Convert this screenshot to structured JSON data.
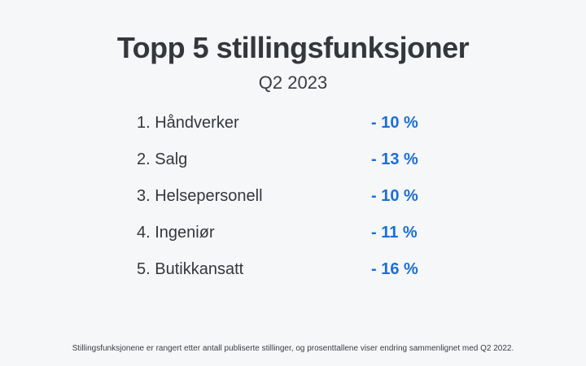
{
  "header": {
    "title": "Topp 5 stillingsfunksjoner",
    "subtitle": "Q2 2023"
  },
  "ranking": [
    {
      "label": "1. Håndverker",
      "change": "- 10 %"
    },
    {
      "label": "2. Salg",
      "change": "- 13 %"
    },
    {
      "label": "3. Helsepersonell",
      "change": "- 10 %"
    },
    {
      "label": "4. Ingeniør",
      "change": "- 11 %"
    },
    {
      "label": "5. Butikkansatt",
      "change": "- 16 %"
    }
  ],
  "footnote": "Stillingsfunksjonene er rangert etter antall publiserte stillinger, og prosenttallene viser endring sammenlignet med Q2 2022.",
  "colors": {
    "background": "#f6f7f9",
    "text": "#34373b",
    "accent": "#1a6fd6"
  }
}
